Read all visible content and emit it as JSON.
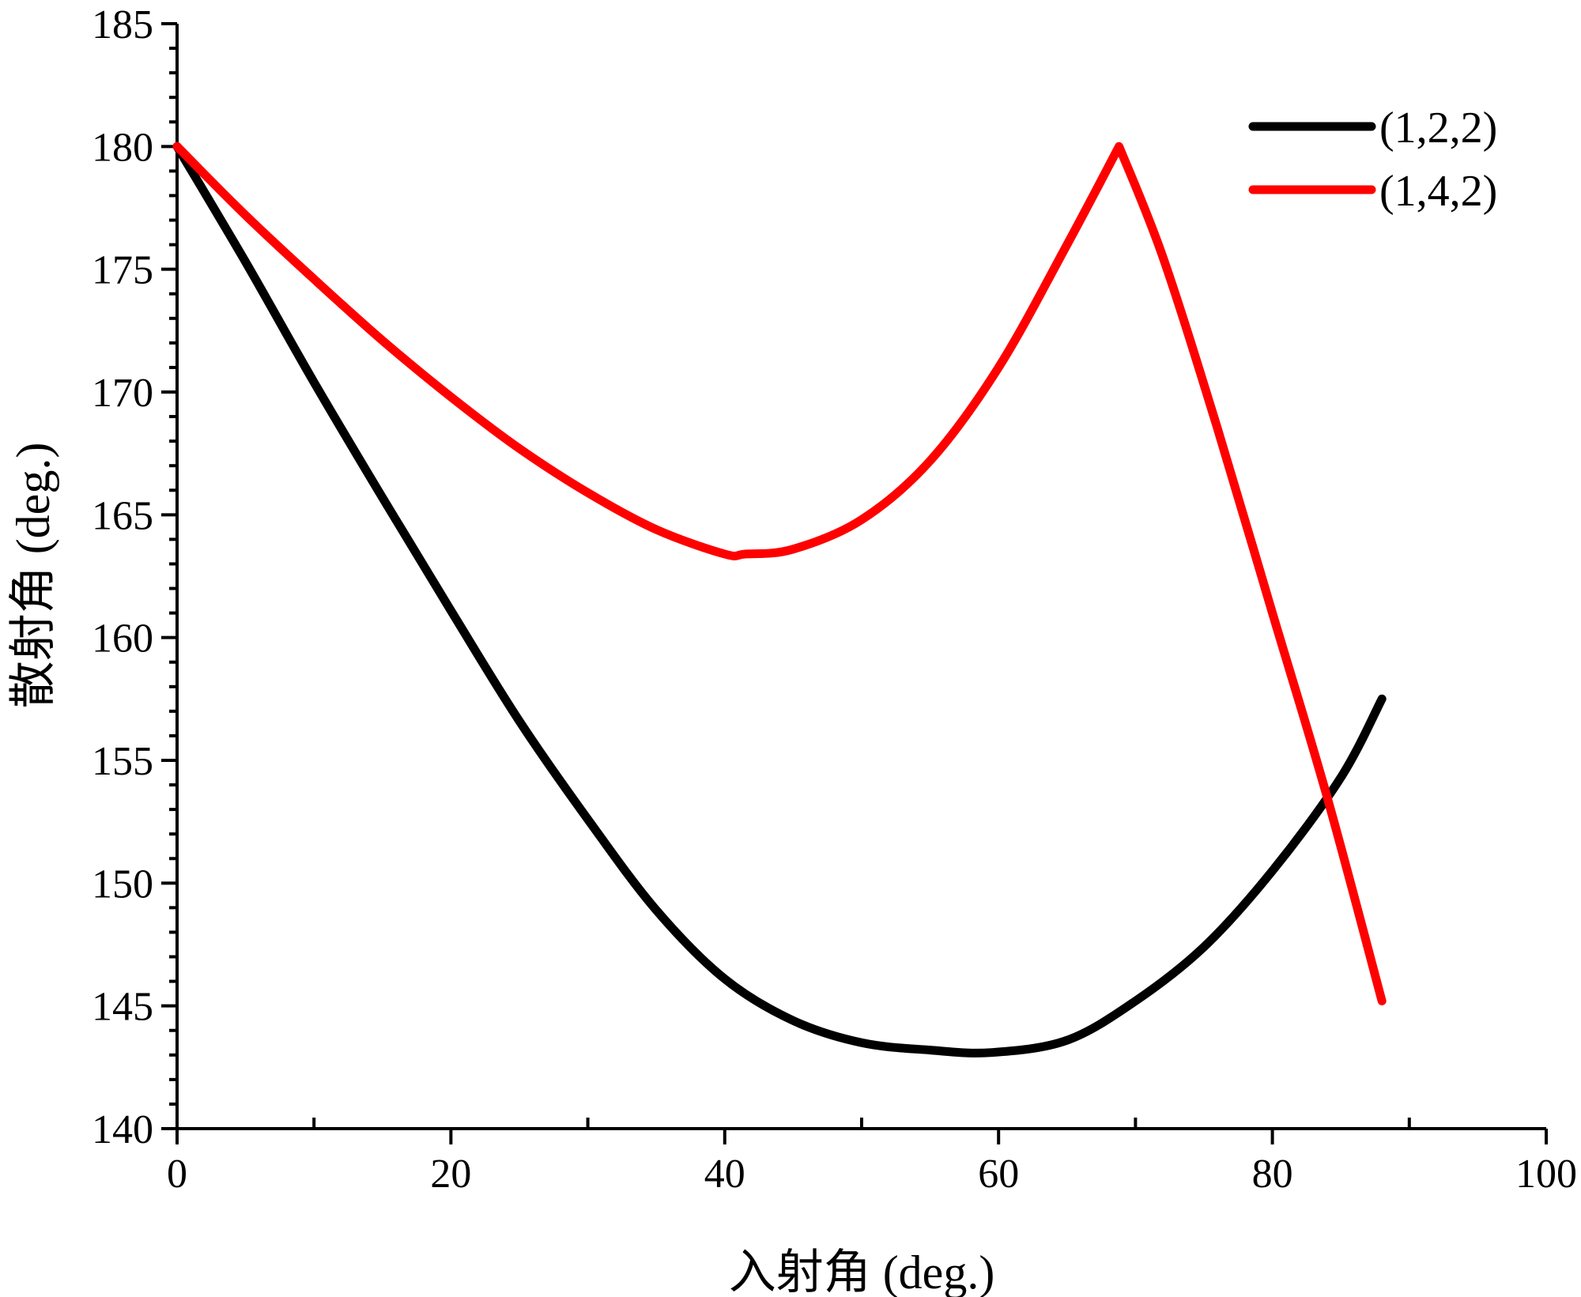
{
  "chart_data": {
    "type": "line",
    "title": "",
    "xlabel": "入射角 (deg.)",
    "ylabel": "散射角 (deg.)",
    "xlim": [
      0,
      100
    ],
    "ylim": [
      140,
      185
    ],
    "x_major_ticks": [
      0,
      20,
      40,
      60,
      80,
      100
    ],
    "x_minor_ticks": [
      10,
      30,
      50,
      70,
      90
    ],
    "y_major_ticks": [
      140,
      145,
      150,
      155,
      160,
      165,
      170,
      175,
      180,
      185
    ],
    "x_tick_labels": [
      "0",
      "20",
      "40",
      "60",
      "80",
      "100"
    ],
    "y_tick_labels": [
      "140",
      "145",
      "150",
      "155",
      "160",
      "165",
      "170",
      "175",
      "180",
      "185"
    ],
    "grid": false,
    "legend_position": "top-right",
    "series": [
      {
        "name": "(1,2,2)",
        "color": "#000000",
        "x": [
          0,
          5,
          10,
          15,
          20,
          25,
          30,
          35,
          40,
          45,
          50,
          55,
          59.5,
          65,
          70,
          75,
          80,
          85,
          88
        ],
        "y": [
          180,
          175.3,
          170.4,
          165.7,
          161.1,
          156.6,
          152.6,
          148.9,
          146.1,
          144.4,
          143.5,
          143.2,
          143.1,
          143.6,
          145.2,
          147.4,
          150.5,
          154.3,
          157.5
        ]
      },
      {
        "name": "(1,4,2)",
        "color": "#ff0000",
        "x": [
          0,
          5,
          10,
          15,
          20,
          25,
          30,
          35,
          40,
          41.5,
          45,
          50,
          55,
          60,
          65,
          68.8,
          72,
          76,
          80,
          84,
          88
        ],
        "y": [
          180,
          177.2,
          174.6,
          172.1,
          169.8,
          167.7,
          165.9,
          164.4,
          163.4,
          163.4,
          163.6,
          164.8,
          167.2,
          171.0,
          176.0,
          180.0,
          175.5,
          168.5,
          161.0,
          153.5,
          145.2
        ]
      }
    ]
  }
}
